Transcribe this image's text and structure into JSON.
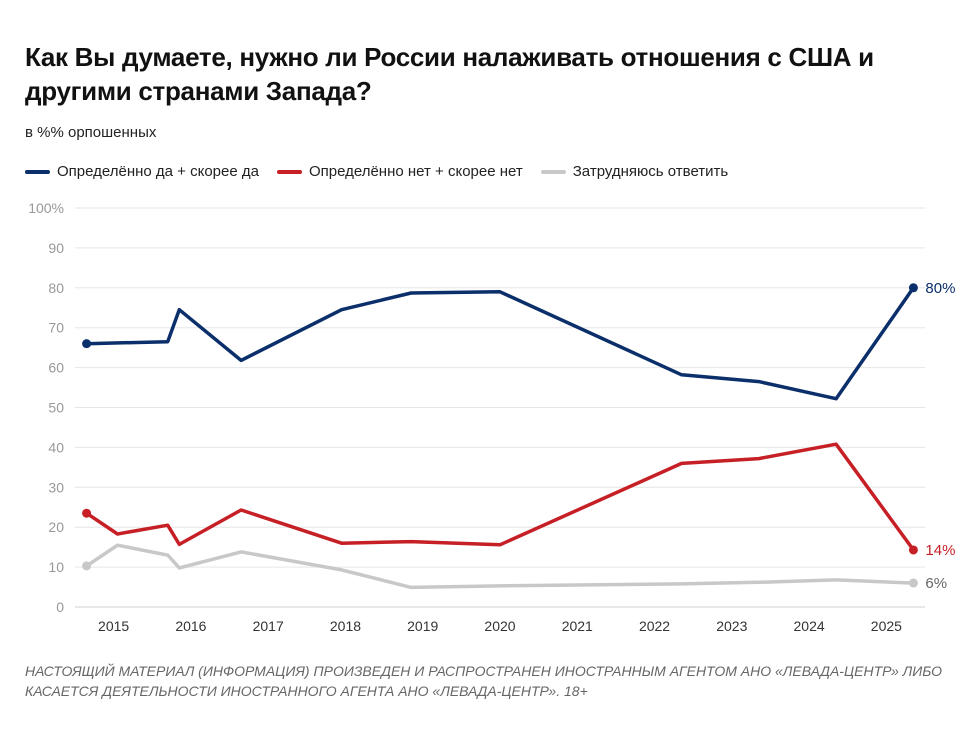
{
  "title": "Как Вы думаете, нужно ли России налаживать отношения с США и другими странами Запада?",
  "subtitle": "в %% орпошенных",
  "footer": "НАСТОЯЩИЙ МАТЕРИАЛ (ИНФОРМАЦИЯ) ПРОИЗВЕДЕН И РАСПРОСТРАНЕН ИНОСТРАННЫМ АГЕНТОМ АНО «ЛЕВАДА-ЦЕНТР» ЛИБО КАСАЕТСЯ ДЕЯТЕЛЬНОСТИ ИНОСТРАННОГО АГЕНТА АНО «ЛЕВАДА-ЦЕНТР». 18+",
  "chart_data": {
    "type": "line",
    "title": "Как Вы думаете, нужно ли России налаживать отношения с США и другими странами Запада?",
    "subtitle": "в %% орпошенных",
    "xlabel": "",
    "ylabel": "",
    "xlim": [
      2014.5,
      2025.5
    ],
    "ylim": [
      0,
      100
    ],
    "yticks": [
      "0",
      "10",
      "20",
      "30",
      "40",
      "50",
      "60",
      "70",
      "80",
      "90",
      "100%"
    ],
    "xticks": [
      "2015",
      "2016",
      "2017",
      "2018",
      "2019",
      "2020",
      "2021",
      "2022",
      "2023",
      "2024",
      "2025"
    ],
    "grid": true,
    "legend_position": "top-left",
    "series": [
      {
        "name": "Определённо да + скорее да",
        "color": "#0b2f6b",
        "end_label": "80%",
        "points": [
          [
            2014.65,
            66
          ],
          [
            2015.7,
            66.5
          ],
          [
            2015.85,
            74.5
          ],
          [
            2016.65,
            61.8
          ],
          [
            2017.95,
            74.5
          ],
          [
            2018.85,
            78.7
          ],
          [
            2020.0,
            79
          ],
          [
            2022.35,
            58.2
          ],
          [
            2023.35,
            56.5
          ],
          [
            2024.35,
            52.2
          ],
          [
            2025.35,
            80
          ]
        ]
      },
      {
        "name": "Определённо нет + скорее нет",
        "color": "#c62026",
        "end_label": "14%",
        "points": [
          [
            2014.65,
            23.5
          ],
          [
            2015.05,
            18.3
          ],
          [
            2015.7,
            20.5
          ],
          [
            2015.85,
            15.7
          ],
          [
            2016.65,
            24.3
          ],
          [
            2017.95,
            16
          ],
          [
            2018.85,
            16.4
          ],
          [
            2020.0,
            15.6
          ],
          [
            2022.35,
            36
          ],
          [
            2023.35,
            37.2
          ],
          [
            2024.35,
            40.8
          ],
          [
            2025.35,
            14.3
          ]
        ]
      },
      {
        "name": "Затрудняюсь ответить",
        "color": "#c8c8c8",
        "end_label": "6%",
        "points": [
          [
            2014.65,
            10.3
          ],
          [
            2015.05,
            15.5
          ],
          [
            2015.7,
            13
          ],
          [
            2015.85,
            9.8
          ],
          [
            2016.65,
            13.8
          ],
          [
            2017.95,
            9.3
          ],
          [
            2018.85,
            4.9
          ],
          [
            2020.0,
            5.3
          ],
          [
            2022.35,
            5.8
          ],
          [
            2023.35,
            6.2
          ],
          [
            2024.35,
            6.8
          ],
          [
            2025.35,
            6
          ]
        ]
      }
    ]
  }
}
